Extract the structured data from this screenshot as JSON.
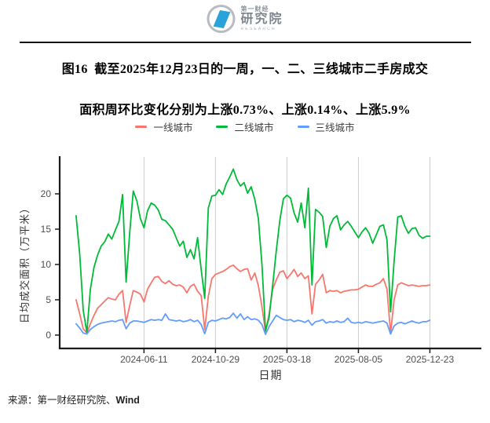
{
  "header": {
    "brand_small": "第一财经",
    "brand_large": "研究院",
    "brand_sub": "RESEARCH"
  },
  "title": {
    "line1": "图16  截至2025年12月23日的一周，一、二、三线城市二手房成交",
    "line2": "面积周环比变化分别为上涨0.73%、上涨0.14%、上涨5.9%"
  },
  "legend": {
    "items": [
      {
        "label": "一线城市",
        "color": "#F8766D"
      },
      {
        "label": "二线城市",
        "color": "#00BA38"
      },
      {
        "label": "三线城市",
        "color": "#619CFF"
      }
    ]
  },
  "chart_data": {
    "type": "line",
    "title": "一、二、三线城市二手房日均成交面积（周度）",
    "xlabel": "日期",
    "ylabel": "日均成交面积（万平米）",
    "ylim": [
      0,
      24
    ],
    "y_ticks": [
      0,
      5,
      10,
      15,
      20
    ],
    "grid": "vertical-only",
    "legend_position": "top",
    "x_week_start": "2024-01-30",
    "x_step_days": 7,
    "x_tick_labels": [
      "2024-06-11",
      "2024-10-29",
      "2025-03-18",
      "2025-08-05",
      "2025-12-23"
    ],
    "x_tick_indices": [
      19,
      39,
      59,
      79,
      99
    ],
    "series": [
      {
        "name": "一线城市",
        "color": "#F8766D",
        "values": [
          5.0,
          3.0,
          0.9,
          0.3,
          1.6,
          2.8,
          3.8,
          4.3,
          4.8,
          5.3,
          5.1,
          5.0,
          5.8,
          6.3,
          1.8,
          4.2,
          6.3,
          6.1,
          5.8,
          4.7,
          6.5,
          7.4,
          8.2,
          8.3,
          7.6,
          7.3,
          7.7,
          7.2,
          7.0,
          7.1,
          6.8,
          6.0,
          6.9,
          7.2,
          6.2,
          5.6,
          0.8,
          5.5,
          8.0,
          8.6,
          8.8,
          9.0,
          9.3,
          9.7,
          9.9,
          9.4,
          9.0,
          9.3,
          9.4,
          7.8,
          8.8,
          7.0,
          4.0,
          0.5,
          3.0,
          6.5,
          7.8,
          8.9,
          9.1,
          8.0,
          8.6,
          9.3,
          8.3,
          8.8,
          8.0,
          8.4,
          3.0,
          7.2,
          7.8,
          8.6,
          6.0,
          6.3,
          6.2,
          6.3,
          6.0,
          6.2,
          6.3,
          6.4,
          6.4,
          6.5,
          6.8,
          7.1,
          6.9,
          6.9,
          7.2,
          7.4,
          8.0,
          6.5,
          0.3,
          5.0,
          7.1,
          7.4,
          7.2,
          7.0,
          7.1,
          7.0,
          6.9,
          7.0,
          7.0,
          7.1
        ]
      },
      {
        "name": "二线城市",
        "color": "#00BA38",
        "values": [
          16.9,
          11.5,
          3.5,
          0.4,
          6.5,
          9.6,
          11.3,
          12.6,
          13.2,
          14.3,
          13.6,
          14.9,
          16.1,
          19.9,
          7.5,
          14.5,
          20.4,
          19.0,
          16.5,
          15.2,
          17.6,
          18.7,
          18.4,
          17.7,
          16.4,
          16.2,
          15.6,
          15.0,
          13.8,
          12.6,
          13.3,
          11.0,
          12.1,
          10.8,
          13.8,
          9.3,
          5.2,
          18.0,
          19.7,
          19.8,
          20.6,
          19.9,
          21.4,
          22.4,
          23.5,
          22.0,
          21.1,
          21.6,
          20.1,
          21.0,
          19.2,
          16.5,
          10.0,
          0.6,
          2.5,
          7.0,
          11.9,
          16.2,
          19.3,
          19.8,
          19.4,
          17.3,
          16.0,
          18.7,
          15.2,
          20.8,
          7.1,
          17.8,
          17.4,
          16.8,
          12.4,
          15.4,
          16.5,
          16.9,
          14.9,
          15.6,
          16.1,
          15.4,
          14.6,
          13.8,
          14.6,
          15.2,
          14.4,
          13.0,
          14.2,
          15.4,
          15.6,
          13.5,
          3.3,
          10.5,
          16.7,
          16.9,
          15.4,
          14.4,
          15.1,
          15.2,
          14.1,
          13.7,
          14.0,
          14.0
        ]
      },
      {
        "name": "三线城市",
        "color": "#619CFF",
        "values": [
          1.6,
          1.0,
          0.3,
          0.15,
          0.8,
          1.2,
          1.5,
          1.7,
          1.8,
          1.9,
          2.0,
          1.9,
          2.1,
          2.2,
          0.9,
          1.7,
          2.0,
          2.0,
          1.9,
          1.8,
          2.0,
          2.2,
          2.1,
          2.2,
          2.1,
          3.0,
          2.2,
          2.1,
          2.0,
          2.1,
          1.9,
          2.0,
          2.2,
          1.9,
          2.1,
          1.5,
          0.2,
          1.8,
          2.1,
          2.0,
          2.2,
          2.4,
          2.3,
          2.5,
          3.1,
          2.4,
          3.0,
          2.2,
          2.6,
          2.2,
          2.3,
          2.1,
          1.5,
          0.1,
          1.2,
          2.0,
          2.8,
          2.5,
          2.2,
          2.1,
          2.2,
          1.9,
          2.1,
          2.0,
          1.8,
          2.1,
          1.4,
          1.9,
          2.0,
          2.2,
          1.7,
          1.9,
          1.8,
          2.0,
          1.8,
          1.9,
          2.4,
          1.8,
          1.7,
          1.8,
          1.7,
          1.9,
          1.8,
          1.7,
          1.8,
          1.9,
          2.0,
          1.7,
          0.15,
          1.3,
          1.7,
          1.8,
          1.6,
          1.8,
          2.0,
          1.8,
          1.7,
          1.9,
          1.9,
          2.1
        ]
      }
    ]
  },
  "footer": {
    "source_prefix": "来源：第一财经研究院、",
    "source_brand": "Wind"
  }
}
